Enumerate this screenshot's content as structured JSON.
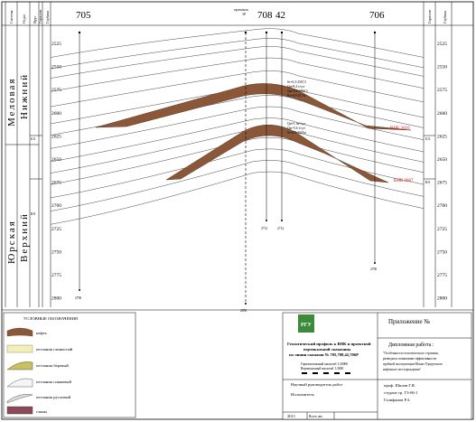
{
  "header": {
    "column_left": [
      "Система",
      "Отдел",
      "Ярус",
      "Горизонт",
      "Глубина"
    ],
    "column_right": [
      "Горизонт",
      "Глубина"
    ],
    "wells_top": [
      "705",
      "708",
      "42",
      "706"
    ],
    "proj_well": "проектная\n1Р",
    "proj_label": "проектная",
    "proj_num": "1Р"
  },
  "vertical_labels": {
    "system_top": "Меловая",
    "dept_top": "Нижний",
    "system_bottom": "Юрская",
    "dept_bottom": "Верхний"
  },
  "horizons_left": [
    "Б11",
    "Ю1"
  ],
  "horizons_right": [
    "Б11",
    "Ю1"
  ],
  "depths": [
    "2525",
    "2550",
    "2575",
    "2600",
    "2625",
    "2650",
    "2675",
    "2700",
    "2725",
    "2750",
    "2775",
    "2800"
  ],
  "well_bottoms": [
    "2790",
    "2850",
    "2712",
    "2712",
    "2700"
  ],
  "layer_labels": {
    "upper": "ВНК 2610",
    "lower": "ВНК 2667"
  },
  "annotations_upper": [
    "Sг=0,3-2567,5",
    "Qн=8,4 т/сут",
    "Qж=8,4-2568,5",
    "Ка=0,9-25,7м"
  ],
  "annotations_lower": [
    "Qн=5,1м³/сут",
    "Qж=5,6 т/сут",
    "Sг=0,3-2645м"
  ],
  "legend": {
    "title": "УСЛОВНЫЕ ОБОЗНАЧЕНИЯ",
    "items": [
      {
        "label": "нефть",
        "swatch": "oil"
      },
      {
        "label": "песчаник глинистый",
        "swatch": "clay-sand"
      },
      {
        "label": "песчаник баровый",
        "swatch": "bar-sand"
      },
      {
        "label": "песчаник пляжевый",
        "swatch": "beach-sand"
      },
      {
        "label": "песчаник русловый",
        "swatch": "river-sand"
      },
      {
        "label": "глины",
        "swatch": "clay"
      }
    ]
  },
  "titleblock": {
    "logo_text": "РГУ",
    "main_title": "Геологический профиль к ВНК и проектной вертикальной скважины по линии скважин № 705,708,42,706Р",
    "scale_h": "Горизонтальный масштаб 1:30000",
    "scale_v": "Вертикальный масштаб 1:3000",
    "appendix": "Приложение №",
    "thesis_label": "Дипломная работа :",
    "thesis_title": "\"Особенности геологического строения, разведки и повышение эффективности пробной эксплуатации Южно-Удмуртского нефтяного месторождения\"",
    "supervisor_label": "Научный руководитель работ",
    "executor_label": "Исполнитель",
    "supervisor_name": "проф. Шилов Г.Я.",
    "student_line": "студент гр. ГЗ-06-1",
    "student_name": "Галифанов Р.З.",
    "year": "2011",
    "sheets": "Всего лис."
  },
  "colors": {
    "oil": "#8a5838",
    "lines": "#333333",
    "accent_red": "#d01010",
    "grid": "#555555"
  }
}
